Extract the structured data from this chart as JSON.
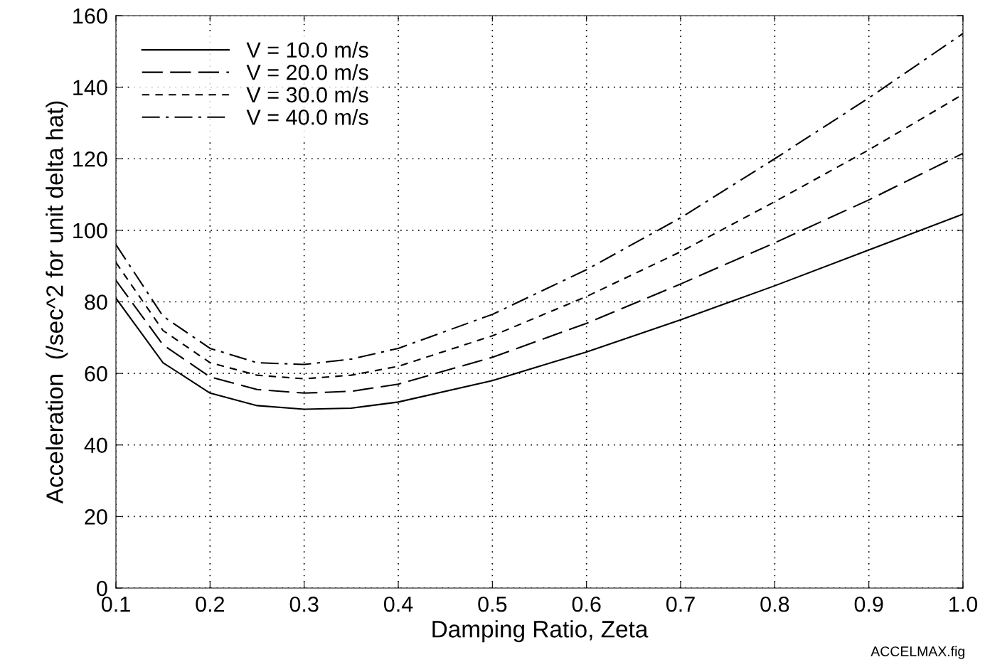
{
  "chart_data": {
    "type": "line",
    "xlabel": "Damping Ratio, Zeta",
    "ylabel": "Acceleration  (/sec^2 for unit delta hat)",
    "x": [
      0.1,
      0.15,
      0.2,
      0.25,
      0.3,
      0.35,
      0.4,
      0.5,
      0.6,
      0.7,
      0.8,
      0.9,
      1.0
    ],
    "series": [
      {
        "name": "V = 10.0 m/s",
        "color": "#000000",
        "line_style": "solid",
        "values": [
          81,
          63,
          54.5,
          51,
          50,
          50.3,
          52,
          58,
          66,
          75,
          84.5,
          94.5,
          104.5
        ]
      },
      {
        "name": "V = 20.0 m/s",
        "color": "#000000",
        "line_style": "dashed",
        "values": [
          86,
          68,
          59,
          55.5,
          54.5,
          55,
          57,
          64.5,
          74,
          85,
          96.5,
          108.5,
          121.5
        ]
      },
      {
        "name": "V = 30.0 m/s",
        "color": "#000000",
        "line_style": "dotted",
        "values": [
          91,
          72,
          63,
          59.5,
          58.5,
          59.5,
          62,
          70.5,
          81.5,
          94,
          108,
          122.5,
          138
        ]
      },
      {
        "name": "V = 40.0 m/s",
        "color": "#000000",
        "line_style": "dashdot",
        "values": [
          96,
          76,
          67,
          63,
          62.5,
          64,
          67,
          76.5,
          89,
          103.5,
          120,
          137,
          155
        ]
      }
    ],
    "xlim": [
      0.1,
      1.0
    ],
    "xticks": [
      {
        "value": 0.1,
        "label": "0.1"
      },
      {
        "value": 0.2,
        "label": "0.2"
      },
      {
        "value": 0.3,
        "label": "0.3"
      },
      {
        "value": 0.4,
        "label": "0.4"
      },
      {
        "value": 0.5,
        "label": "0.5"
      },
      {
        "value": 0.6,
        "label": "0.6"
      },
      {
        "value": 0.7,
        "label": "0.7"
      },
      {
        "value": 0.8,
        "label": "0.8"
      },
      {
        "value": 0.9,
        "label": "0.9"
      },
      {
        "value": 1.0,
        "label": "1.0"
      }
    ],
    "ylim": [
      0,
      160
    ],
    "yticks": [
      0,
      20,
      40,
      60,
      80,
      100,
      120,
      140,
      160
    ],
    "grid": true,
    "legend": "top left",
    "marker": "none",
    "annotations": [
      "ACCELMAX.fig"
    ]
  }
}
